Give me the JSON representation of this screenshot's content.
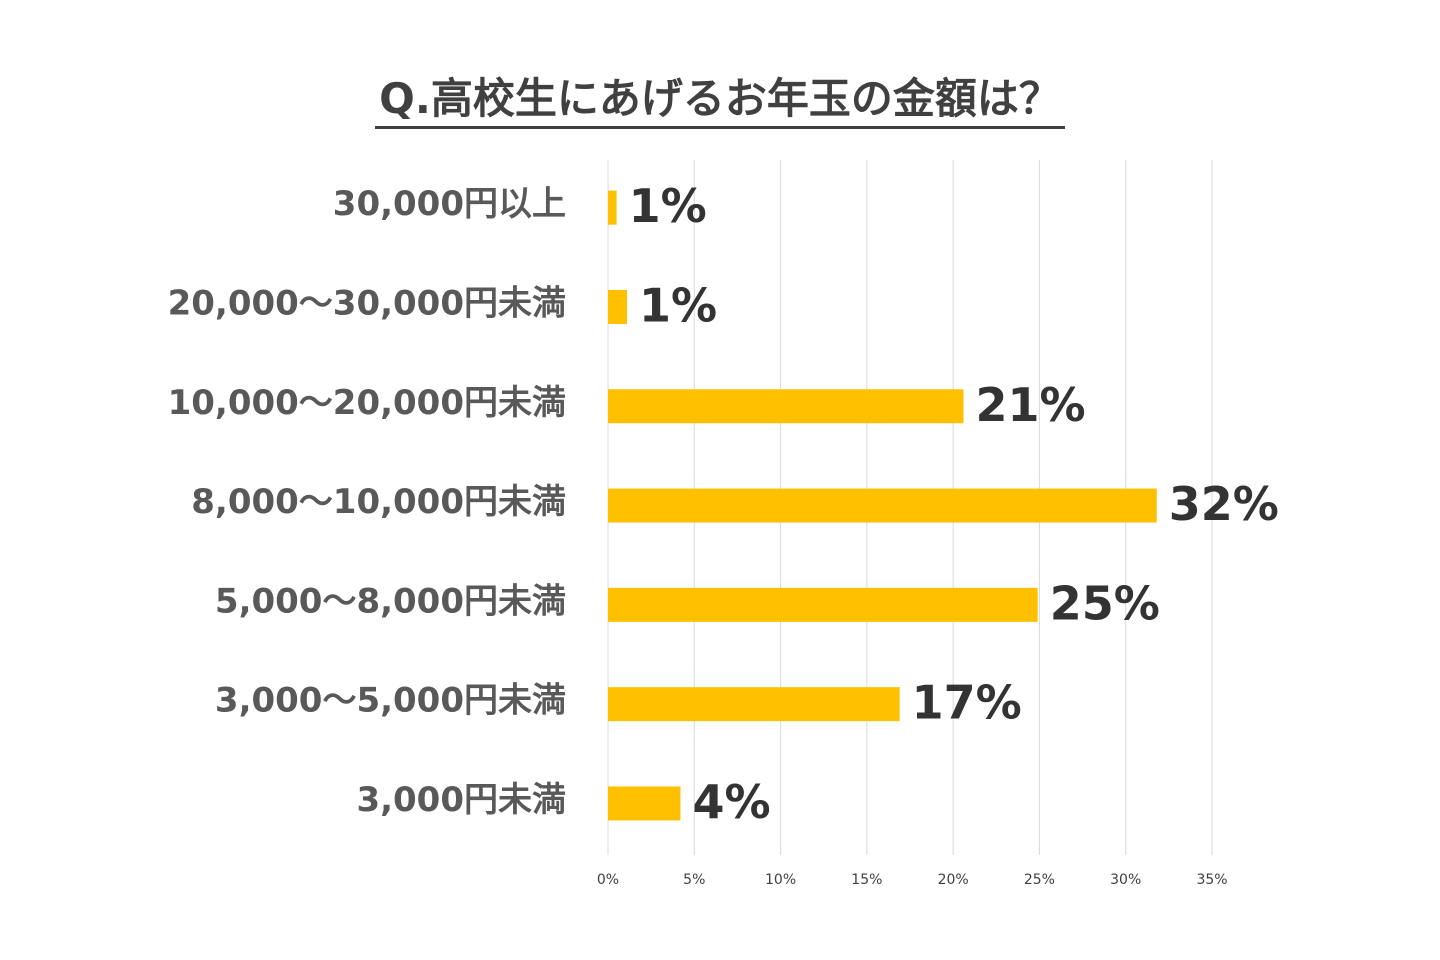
{
  "chart_data": {
    "type": "bar",
    "orientation": "horizontal",
    "title": "Q.高校生にあげるお年玉の金額は？",
    "categories": [
      "30,000円以上",
      "20,000〜30,000円未満",
      "10,000〜20,000円未満",
      "8,000〜10,000円未満",
      "5,000〜8,000円未満",
      "3,000〜5,000円未満",
      "3,000円未満"
    ],
    "values": [
      0.5,
      1.1,
      20.6,
      31.8,
      24.9,
      16.9,
      4.2
    ],
    "data_labels": [
      "1%",
      "1%",
      "21%",
      "32%",
      "25%",
      "17%",
      "4%"
    ],
    "x_ticks": [
      "0%",
      "5%",
      "10%",
      "15%",
      "20%",
      "25%",
      "30%",
      "35%"
    ],
    "xlim": [
      0,
      35
    ],
    "grid": true,
    "legend": false,
    "bar_color": "#ffc000",
    "title_color": "#404040",
    "category_label_color": "#595959",
    "value_label_color": "#333333",
    "gridline_color": "#d9d9d9"
  }
}
